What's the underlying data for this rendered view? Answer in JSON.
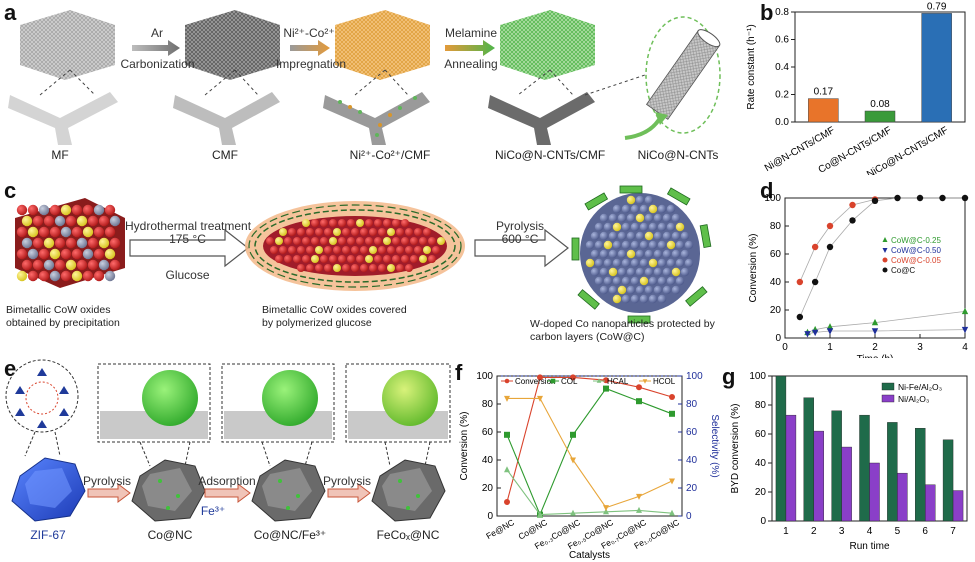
{
  "panels": {
    "a": {
      "label": "a",
      "arrows": [
        {
          "top": "Ar",
          "bottom": "Carbonization"
        },
        {
          "top": "Ni²⁺-Co²⁺",
          "bottom": "Impregnation"
        },
        {
          "top": "Melamine",
          "bottom": "Annealing"
        }
      ],
      "captions": [
        "MF",
        "CMF",
        "Ni²⁺-Co²⁺/CMF",
        "NiCo@N-CNTs/CMF",
        "NiCo@N-CNTs"
      ]
    },
    "b": {
      "label": "b"
    },
    "c": {
      "label": "c",
      "arrow1_top": "Hydrothermal treatment",
      "arrow1_mid": "175 °C",
      "arrow1_bottom": "Glucose",
      "arrow2_top": "Pyrolysis",
      "arrow2_mid": "600 °C",
      "caption1_l1": "Bimetallic CoW oxides",
      "caption1_l2": "obtained by precipitation",
      "caption2_l1": "Bimetallic CoW oxides covered",
      "caption2_l2": "by polymerized glucose",
      "caption3_l1": "W-doped Co nanoparticles protected by",
      "caption3_l2": "carbon layers (CoW@C)"
    },
    "d": {
      "label": "d"
    },
    "e": {
      "label": "e",
      "arrow1": "Pyrolysis",
      "arrow2": "Adsorption",
      "arrow2_sub": "Fe³⁺",
      "arrow3": "Pyrolysis",
      "captions": [
        "ZIF-67",
        "Co@NC",
        "Co@NC/Fe³⁺",
        "FeCoₓ@NC"
      ]
    },
    "f": {
      "label": "f"
    },
    "g": {
      "label": "g"
    }
  },
  "chart_data": [
    {
      "panel": "b",
      "type": "bar",
      "ylabel": "Rate constant (h⁻¹)",
      "ylim": [
        0,
        0.8
      ],
      "yticks": [
        "0.0",
        "0.2",
        "0.4",
        "0.6",
        "0.8"
      ],
      "categories": [
        "Ni@N-CNTs/CMF",
        "Co@N-CNTs/CMF",
        "NiCo@N-CNTs/CMF"
      ],
      "values": [
        0.17,
        0.08,
        0.79
      ],
      "data_labels": [
        "0.17",
        "0.08",
        "0.79"
      ],
      "colors": [
        "#e8742a",
        "#3a9a3a",
        "#2a6fb5"
      ]
    },
    {
      "panel": "d",
      "type": "line",
      "xlabel": "Time (h)",
      "ylabel": "Conversion (%)",
      "xlim": [
        0,
        4
      ],
      "ylim": [
        0,
        100
      ],
      "xticks": [
        "0",
        "1",
        "2",
        "3",
        "4"
      ],
      "yticks": [
        "0",
        "20",
        "40",
        "60",
        "80",
        "100"
      ],
      "legend_position": "middle-right",
      "series": [
        {
          "name": "CoW@C-0.25",
          "color": "#2e9a2e",
          "marker": "triangle-up",
          "x": [
            0.5,
            0.67,
            1.0,
            2.0,
            4.0
          ],
          "y": [
            4,
            6,
            8,
            11,
            19
          ]
        },
        {
          "name": "CoW@C-0.50",
          "color": "#1f2f9a",
          "marker": "triangle-down",
          "x": [
            0.5,
            0.67,
            1.0,
            2.0,
            4.0
          ],
          "y": [
            3,
            4,
            5,
            5,
            6
          ]
        },
        {
          "name": "CoW@C-0.05",
          "color": "#d9432c",
          "marker": "circle",
          "x": [
            0.33,
            0.67,
            1.0,
            1.5,
            2.0
          ],
          "y": [
            40,
            65,
            80,
            95,
            99
          ]
        },
        {
          "name": "Co@C",
          "color": "#111111",
          "marker": "circle",
          "x": [
            0.33,
            0.67,
            1.0,
            1.5,
            2.0,
            2.5,
            3.0,
            3.5,
            4.0
          ],
          "y": [
            15,
            40,
            65,
            84,
            98,
            100,
            100,
            100,
            100
          ]
        }
      ]
    },
    {
      "panel": "f",
      "type": "line",
      "xlabel": "Catalysts",
      "ylabel": "Conversion (%)",
      "y2label": "Selectivity (%)",
      "ylim": [
        0,
        100
      ],
      "y2lim": [
        0,
        100
      ],
      "yticks": [
        "0",
        "20",
        "40",
        "60",
        "80",
        "100"
      ],
      "categories": [
        "Fe@NC",
        "Co@NC",
        "Fe₀.₃Co@NC",
        "Fe₀.₅Co@NC",
        "Fe₀.₇Co@NC",
        "Fe₁.₀Co@NC"
      ],
      "legend_position": "top",
      "series": [
        {
          "name": "Conversion",
          "color": "#d9432c",
          "marker": "circle",
          "values": [
            10,
            99,
            99,
            97,
            92,
            85
          ]
        },
        {
          "name": "COL",
          "color": "#2e9a2e",
          "marker": "square",
          "values": [
            58,
            1,
            58,
            91,
            82,
            73
          ]
        },
        {
          "name": "HCAL",
          "color": "#7fc27f",
          "marker": "triangle-up",
          "values": [
            33,
            1,
            2,
            3,
            4,
            2
          ]
        },
        {
          "name": "HCOL",
          "color": "#e8a63a",
          "marker": "triangle-down",
          "values": [
            84,
            84,
            40,
            6,
            14,
            25
          ]
        }
      ]
    },
    {
      "panel": "g",
      "type": "bar",
      "xlabel": "Run time",
      "ylabel": "BYD conversion (%)",
      "ylim": [
        0,
        100
      ],
      "yticks": [
        "0",
        "20",
        "40",
        "60",
        "80",
        "100"
      ],
      "categories": [
        "1",
        "2",
        "3",
        "4",
        "5",
        "6",
        "7"
      ],
      "legend_position": "top-right",
      "series": [
        {
          "name": "Ni-Fe/Al₂O₃",
          "color": "#1f6b4a",
          "values": [
            100,
            85,
            76,
            73,
            68,
            64,
            56
          ]
        },
        {
          "name": "Ni/Al₂O₃",
          "color": "#8a3fc8",
          "values": [
            73,
            62,
            51,
            40,
            33,
            25,
            21
          ]
        }
      ]
    }
  ]
}
